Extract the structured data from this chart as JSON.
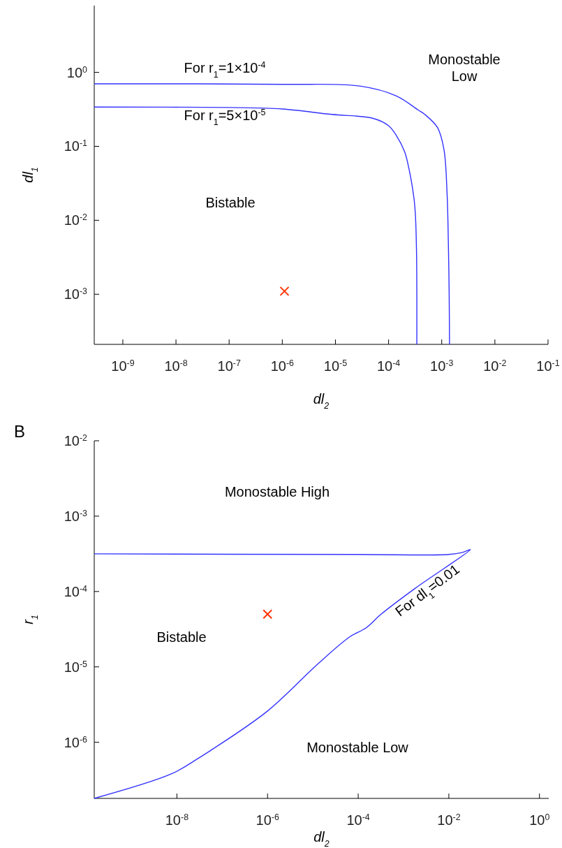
{
  "chart_data": [
    {
      "type": "line",
      "xlabel": "dl$_{2}$",
      "ylabel": "dl$_{1}$",
      "log": "xy",
      "xlim": [
        2.9e-10,
        0.1
      ],
      "ylim": [
        0.00021,
        8
      ],
      "xticks": [
        {
          "value": 1e-09,
          "label": "10$^{-9}$"
        },
        {
          "value": 1e-08,
          "label": "10$^{-8}$"
        },
        {
          "value": 1e-07,
          "label": "10$^{-7}$"
        },
        {
          "value": 1e-06,
          "label": "10$^{-6}$"
        },
        {
          "value": 1e-05,
          "label": "10$^{-5}$"
        },
        {
          "value": 0.0001,
          "label": "10$^{-4}$"
        },
        {
          "value": 0.001,
          "label": "10$^{-3}$"
        },
        {
          "value": 0.01,
          "label": "10$^{-2}$"
        },
        {
          "value": 0.1,
          "label": "10$^{-1}$"
        }
      ],
      "yticks": [
        {
          "value": 0.001,
          "label": "10$^{-3}$"
        },
        {
          "value": 0.01,
          "label": "10$^{-2}$"
        },
        {
          "value": 0.1,
          "label": "10$^{-1}$"
        },
        {
          "value": 1,
          "label": "10$^{0}$"
        }
      ],
      "series": [
        {
          "color": "#3333ff",
          "x": [
            2.9e-10,
            1e-06,
            3e-05,
            0.00014,
            0.00036,
            0.00048,
            0.00083,
            0.0011,
            0.00126,
            0.00133,
            0.00138,
            0.0014
          ],
          "values": [
            0.7,
            0.69,
            0.65,
            0.48,
            0.31,
            0.27,
            0.18,
            0.091,
            0.023,
            0.0053,
            0.001,
            0.00021
          ]
        },
        {
          "color": "#3333ff",
          "x": [
            2.9e-10,
            1e-07,
            1e-06,
            8.5e-06,
            5e-05,
            0.0001,
            0.00014,
            0.0002,
            0.00024,
            0.0003,
            0.00032,
            0.000335,
            0.00034,
            0.00034
          ],
          "values": [
            0.34,
            0.335,
            0.32,
            0.27,
            0.24,
            0.19,
            0.14,
            0.085,
            0.051,
            0.02,
            0.0116,
            0.004,
            0.0011,
            0.00021
          ]
        },
        {
          "type": "scatter",
          "marker": "cross",
          "color": "#ff3300",
          "x": [
            1.1e-06
          ],
          "values": [
            0.0011
          ]
        }
      ],
      "annotations": [
        "For r$_{1}$=1×10$^{-4}$",
        "For r$_{1}$=5×10$^{-5}$",
        "Monostable\nLow",
        "Bistable"
      ]
    },
    {
      "type": "line",
      "title": "B",
      "xlabel": "dl$_{2}$",
      "ylabel": "r$_{1}$",
      "log": "xy",
      "xlim": [
        1.5e-10,
        1.6
      ],
      "ylim": [
        1.8e-07,
        0.01
      ],
      "xticks": [
        {
          "value": 1e-08,
          "label": "10$^{-8}$"
        },
        {
          "value": 1e-06,
          "label": "10$^{-6}$"
        },
        {
          "value": 0.0001,
          "label": "10$^{-4}$"
        },
        {
          "value": 0.01,
          "label": "10$^{-2}$"
        },
        {
          "value": 1,
          "label": "10$^{0}$"
        }
      ],
      "yticks": [
        {
          "value": 1e-06,
          "label": "10$^{-6}$"
        },
        {
          "value": 1e-05,
          "label": "10$^{-5}$"
        },
        {
          "value": 0.0001,
          "label": "10$^{-4}$"
        },
        {
          "value": 0.001,
          "label": "10$^{-3}$"
        },
        {
          "value": 0.01,
          "label": "10$^{-2}$"
        }
      ],
      "series": [
        {
          "color": "#3333ff",
          "x": [
            1.5e-10,
            0.0001,
            0.01,
            0.02,
            0.03,
            0.0018,
            0.00032,
            0.00015,
            6.5e-05,
            1.3e-05,
            1e-06,
            5.4e-08,
            2.8e-08,
            7.5e-09,
            1.5e-10
          ],
          "values": [
            0.000316,
            0.00031,
            0.00031,
            0.00033,
            0.00036,
            0.00011,
            5e-05,
            3.3e-05,
            2.5e-05,
            1.1e-05,
            2.6e-06,
            7.7e-07,
            6e-07,
            3.8e-07,
            1.8e-07
          ]
        },
        {
          "type": "scatter",
          "marker": "cross",
          "color": "#ff3300",
          "x": [
            1e-06
          ],
          "values": [
            5e-05
          ]
        }
      ],
      "annotations": [
        "Monostable High",
        "Bistable",
        "For dl$_{1}$=0.01",
        "Monostable Low"
      ]
    }
  ]
}
